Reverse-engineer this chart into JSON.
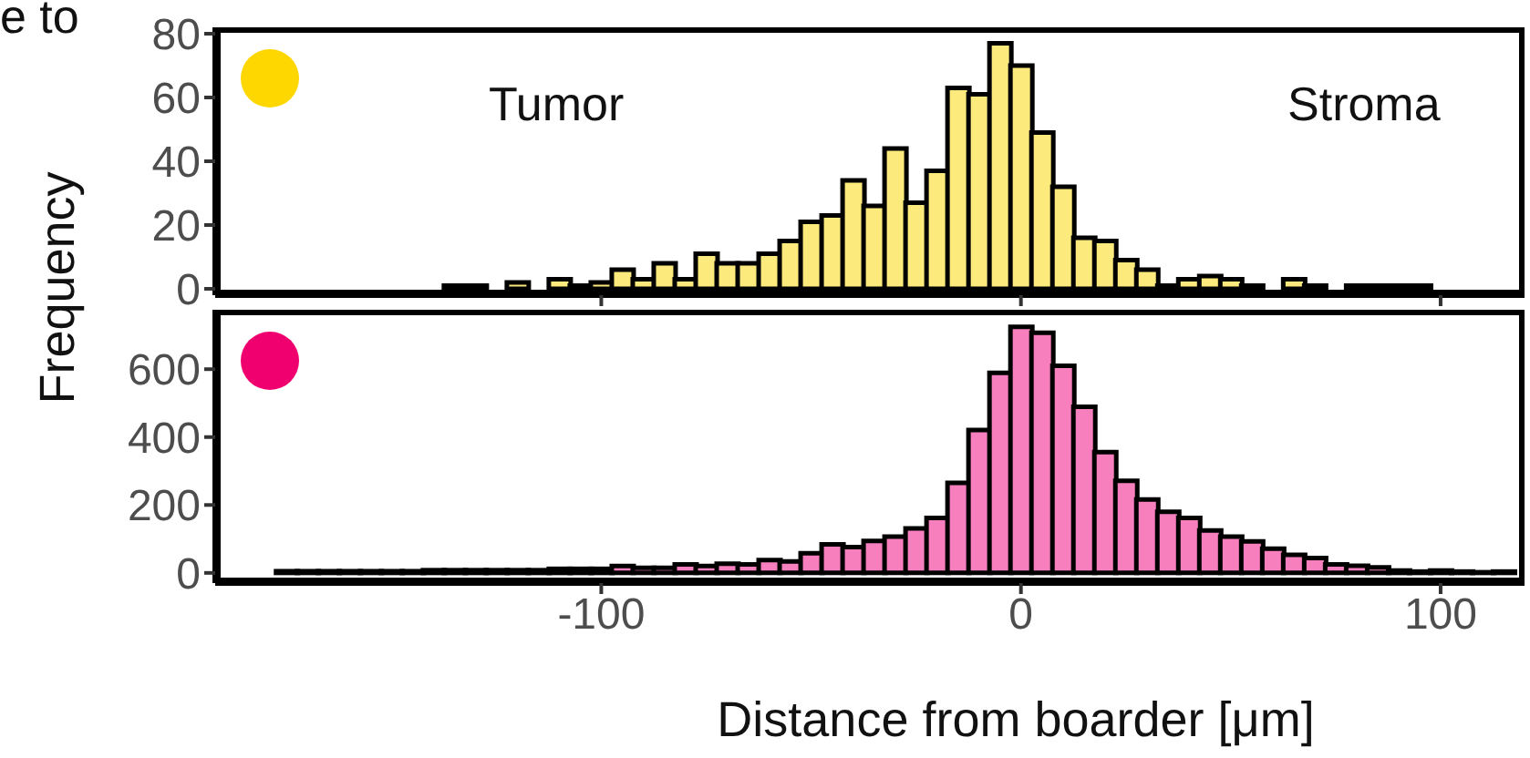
{
  "chart_data": [
    {
      "type": "histogram",
      "ylabel": "Frequency",
      "annotations": [
        "Tumor",
        "Stroma",
        "e to"
      ],
      "color": "#fdea7c",
      "tick_labels": "y",
      "bins": [
        -177.5,
        -172.5,
        -167.5,
        -162.5,
        -157.5,
        -152.5,
        -147.5,
        -142.5,
        -137.5,
        -132.5,
        -127.5,
        -122.5,
        -117.5,
        -112.5,
        -107.5,
        -102.5,
        -97.5,
        -92.5,
        -87.5,
        -82.5,
        -77.5,
        -72.5,
        -67.5,
        -62.5,
        -57.5,
        -52.5,
        -47.5,
        -42.5,
        -37.5,
        -32.5,
        -27.5,
        -22.5,
        -17.5,
        -12.5,
        -7.5,
        -2.5,
        2.5,
        7.5,
        12.5,
        17.5,
        22.5,
        27.5,
        32.5,
        37.5,
        42.5,
        47.5,
        52.5,
        57.5,
        62.5,
        67.5,
        72.5,
        77.5,
        82.5,
        87.5,
        92.5,
        97.5,
        102.5,
        107.5,
        112.5,
        117.5
      ],
      "values": [
        0,
        0,
        0,
        0,
        0,
        0,
        0,
        0,
        1,
        1,
        0,
        2,
        0,
        3,
        1,
        2,
        6,
        3,
        8,
        3,
        11,
        8,
        8,
        11,
        15,
        21,
        23,
        34,
        26,
        44,
        27,
        37,
        63,
        61,
        77,
        70,
        49,
        32,
        16,
        15,
        9,
        6,
        1,
        3,
        4,
        3,
        1,
        0,
        3,
        1,
        0,
        1,
        1,
        1,
        1,
        0,
        0,
        0,
        0
      ],
      "xlim": [
        -192,
        120
      ],
      "xticks": [
        -100,
        0,
        100
      ],
      "ylim": [
        -2,
        82
      ],
      "yticks": [
        0,
        20,
        40,
        60,
        80
      ]
    },
    {
      "type": "histogram",
      "xlabel": "Distance from boarder [μm]",
      "color": "#f77fbe",
      "bins": [
        -177.5,
        -172.5,
        -167.5,
        -162.5,
        -157.5,
        -152.5,
        -147.5,
        -142.5,
        -137.5,
        -132.5,
        -127.5,
        -122.5,
        -117.5,
        -112.5,
        -107.5,
        -102.5,
        -97.5,
        -92.5,
        -87.5,
        -82.5,
        -77.5,
        -72.5,
        -67.5,
        -62.5,
        -57.5,
        -52.5,
        -47.5,
        -42.5,
        -37.5,
        -32.5,
        -27.5,
        -22.5,
        -17.5,
        -12.5,
        -7.5,
        -2.5,
        2.5,
        7.5,
        12.5,
        17.5,
        22.5,
        27.5,
        32.5,
        37.5,
        42.5,
        47.5,
        52.5,
        57.5,
        62.5,
        67.5,
        72.5,
        77.5,
        82.5,
        87.5,
        92.5,
        97.5,
        102.5,
        107.5,
        112.5,
        117.5
      ],
      "values": [
        5,
        5,
        5,
        5,
        5,
        5,
        5,
        8,
        8,
        8,
        8,
        8,
        8,
        12,
        12,
        12,
        20,
        15,
        15,
        25,
        20,
        27,
        25,
        38,
        34,
        58,
        84,
        76,
        94,
        107,
        131,
        162,
        265,
        421,
        589,
        725,
        707,
        610,
        489,
        356,
        271,
        216,
        180,
        162,
        125,
        107,
        93,
        71,
        53,
        44,
        25,
        21,
        16,
        7,
        4,
        7,
        4,
        2,
        4
      ],
      "xlim": [
        -192,
        120
      ],
      "xticks": [
        -100,
        0,
        100
      ],
      "ylim": [
        -30,
        775
      ],
      "yticks": [
        0,
        200,
        400,
        600
      ]
    }
  ]
}
